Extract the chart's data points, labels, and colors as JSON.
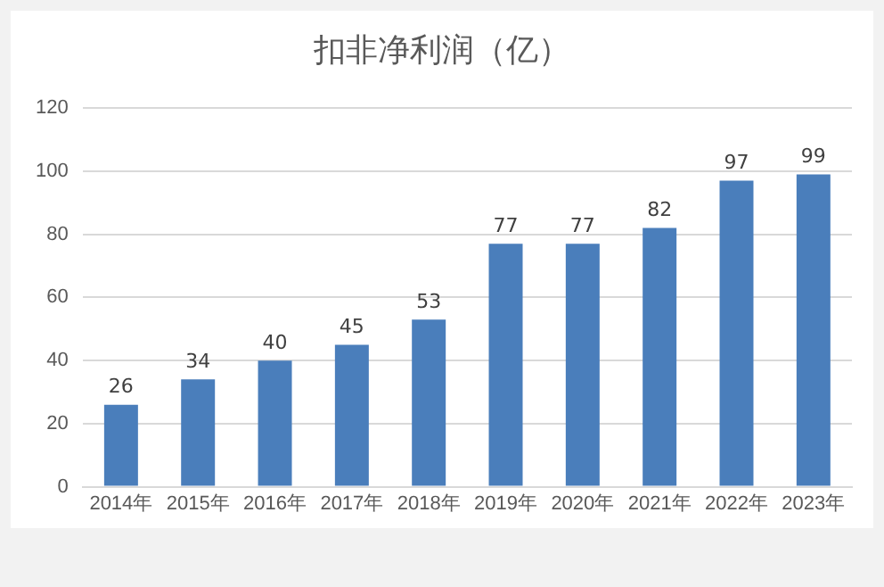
{
  "chart_data": {
    "type": "bar",
    "title": "扣非净利润（亿）",
    "categories": [
      "2014年",
      "2015年",
      "2016年",
      "2017年",
      "2018年",
      "2019年",
      "2020年",
      "2021年",
      "2022年",
      "2023年"
    ],
    "values": [
      26,
      34,
      40,
      45,
      53,
      77,
      77,
      82,
      97,
      99
    ],
    "color": "#4a7ebb",
    "ylim": [
      0,
      120
    ],
    "yticks": [
      0,
      20,
      40,
      60,
      80,
      100,
      120
    ],
    "grid": "y",
    "data_labels": true
  }
}
